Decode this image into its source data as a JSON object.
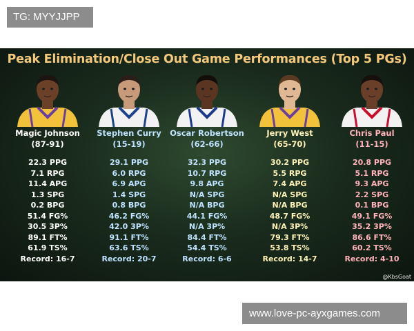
{
  "watermark_top": "TG: MYYJJPP",
  "watermark_bottom": "www.love-pc-ayxgames.com",
  "title": "Peak Elimination/Close Out Game Performances (Top 5 PGs)",
  "credit": "@KbsGoat",
  "players": [
    {
      "name": "Magic Johnson",
      "years": "(87-91)",
      "color": "#ffffff",
      "jersey": "#f2c23a",
      "trim": "#6b3fa0",
      "skin": "#6b4028",
      "hair": "#1c1410",
      "stats": [
        "22.3 PPG",
        "7.1 RPG",
        "11.4 APG",
        "1.3 SPG",
        "0.2 BPG",
        "51.4 FG%",
        "30.5 3P%",
        "89.1 FT%",
        "61.9 TS%",
        "Record: 16-7"
      ]
    },
    {
      "name": "Stephen Curry",
      "years": "(15-19)",
      "color": "#bfe3ff",
      "jersey": "#f2f2f2",
      "trim": "#1d428a",
      "skin": "#c79a7a",
      "hair": "#2a1f18",
      "stats": [
        "29.1 PPG",
        "6.0 RPG",
        "6.9 APG",
        "1.4 SPG",
        "0.8 BPG",
        "46.2 FG%",
        "42.0 3P%",
        "91.1 FT%",
        "63.6 TS%",
        "Record: 20-7"
      ]
    },
    {
      "name": "Oscar Robertson",
      "years": "(62-66)",
      "color": "#bfe3ff",
      "jersey": "#f2f2f2",
      "trim": "#1d3a8a",
      "skin": "#5a3522",
      "hair": "#140e0a",
      "stats": [
        "32.3 PPG",
        "10.7 RPG",
        "9.8 APG",
        "N/A SPG",
        "N/A BPG",
        "44.1 FG%",
        "N/A 3P%",
        "84.4 FT%",
        "54.4 TS%",
        "Record: 6-6"
      ]
    },
    {
      "name": "Jerry West",
      "years": "(65-70)",
      "color": "#fff2b8",
      "jersey": "#f2c23a",
      "trim": "#6b3fa0",
      "skin": "#e0b894",
      "hair": "#5a3a22",
      "stats": [
        "30.2 PPG",
        "5.5 RPG",
        "7.4 APG",
        "N/A SPG",
        "N/A BPG",
        "48.7 FG%",
        "N/A 3P%",
        "79.3 FT%",
        "53.8 TS%",
        "Record: 14-7"
      ]
    },
    {
      "name": "Chris Paul",
      "years": "(11-15)",
      "color": "#ffb3b8",
      "jersey": "#f2f2f2",
      "trim": "#c8102e",
      "skin": "#6a3f2a",
      "hair": "#15100c",
      "stats": [
        "20.8 PPG",
        "5.1 RPG",
        "9.3 APG",
        "2.2 SPG",
        "0.1 BPG",
        "49.1 FG%",
        "35.2 3P%",
        "86.6 FT%",
        "60.2 TS%",
        "Record: 4-10"
      ]
    }
  ]
}
